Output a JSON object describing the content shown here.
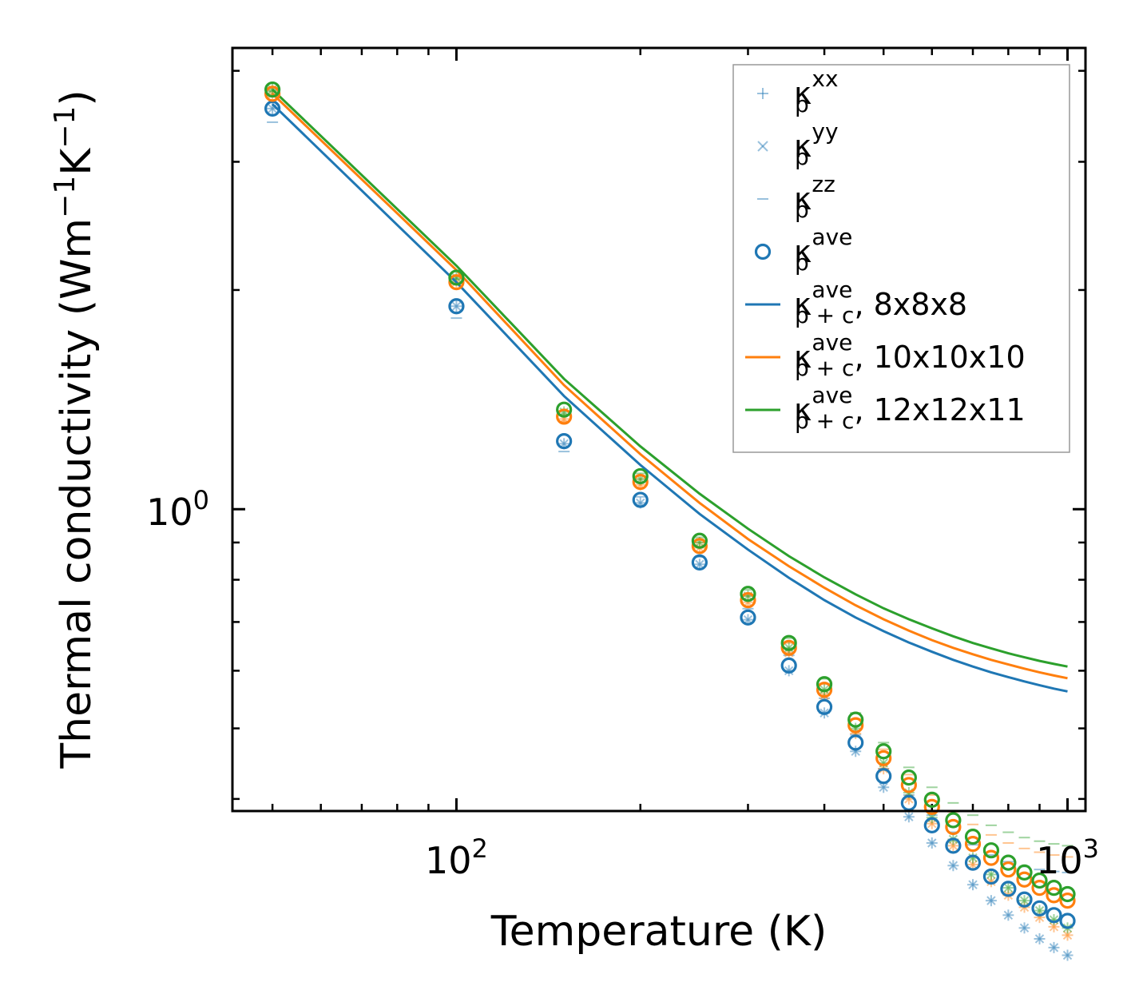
{
  "chart_data": {
    "type": "line",
    "title": "",
    "xlabel": "Temperature (K)",
    "ylabel": "Thermal conductivity (Wm",
    "ylabel_unit_parts": [
      "Wm",
      "−1",
      "K",
      "−1"
    ],
    "xscale": "log",
    "yscale": "log",
    "xlim": [
      43,
      1070
    ],
    "ylim": [
      0.385,
      4.3
    ],
    "x_tick_labels": [
      {
        "base": "10",
        "exp": "2",
        "value": 100
      },
      {
        "base": "10",
        "exp": "3",
        "value": 1000
      }
    ],
    "y_tick_labels": [
      {
        "base": "10",
        "exp": "0",
        "value": 1
      }
    ],
    "grid": false,
    "legend_position": "top-right",
    "x": [
      50,
      100,
      150,
      200,
      250,
      300,
      350,
      400,
      450,
      500,
      550,
      600,
      650,
      700,
      750,
      800,
      850,
      900,
      950,
      1000
    ],
    "series": [
      {
        "name": "8x8x8",
        "color": "#1f77b4",
        "line": [
          3.6,
          2.05,
          1.43,
          1.15,
          0.985,
          0.88,
          0.805,
          0.75,
          0.71,
          0.68,
          0.656,
          0.637,
          0.621,
          0.608,
          0.597,
          0.588,
          0.58,
          0.573,
          0.567,
          0.562
        ],
        "kp_ave": [
          3.55,
          1.9,
          1.24,
          1.03,
          0.845,
          0.71,
          0.61,
          0.535,
          0.478,
          0.43,
          0.395,
          0.368,
          0.345,
          0.327,
          0.313,
          0.301,
          0.291,
          0.283,
          0.277,
          0.272
        ],
        "kp_xx": [
          3.55,
          1.9,
          1.23,
          1.02,
          0.84,
          0.705,
          0.6,
          0.525,
          0.465,
          0.415,
          0.378,
          0.348,
          0.324,
          0.305,
          0.29,
          0.277,
          0.266,
          0.257,
          0.25,
          0.244
        ],
        "kp_yy": [
          3.55,
          1.9,
          1.23,
          1.02,
          0.84,
          0.705,
          0.6,
          0.525,
          0.465,
          0.415,
          0.378,
          0.348,
          0.324,
          0.305,
          0.29,
          0.277,
          0.266,
          0.257,
          0.25,
          0.244
        ],
        "kp_zz": [
          3.4,
          1.83,
          1.2,
          1.04,
          0.86,
          0.73,
          0.63,
          0.55,
          0.49,
          0.44,
          0.405,
          0.38,
          0.36,
          0.346,
          0.335,
          0.328,
          0.323,
          0.32,
          0.318,
          0.317
        ]
      },
      {
        "name": "10x10x10",
        "color": "#ff7f0e",
        "line": [
          3.72,
          2.13,
          1.48,
          1.19,
          1.02,
          0.91,
          0.835,
          0.78,
          0.738,
          0.706,
          0.681,
          0.661,
          0.645,
          0.632,
          0.621,
          0.612,
          0.604,
          0.597,
          0.591,
          0.586
        ],
        "kp_ave": [
          3.72,
          2.05,
          1.34,
          1.09,
          0.89,
          0.75,
          0.645,
          0.565,
          0.505,
          0.455,
          0.418,
          0.39,
          0.366,
          0.347,
          0.332,
          0.32,
          0.31,
          0.302,
          0.295,
          0.29
        ],
        "kp_xx": [
          3.72,
          2.05,
          1.33,
          1.08,
          0.885,
          0.745,
          0.635,
          0.555,
          0.492,
          0.44,
          0.4,
          0.37,
          0.345,
          0.325,
          0.308,
          0.295,
          0.284,
          0.275,
          0.267,
          0.26
        ],
        "kp_yy": [
          3.72,
          2.05,
          1.33,
          1.08,
          0.885,
          0.745,
          0.635,
          0.555,
          0.492,
          0.44,
          0.4,
          0.37,
          0.345,
          0.325,
          0.308,
          0.295,
          0.284,
          0.275,
          0.267,
          0.26
        ],
        "kp_zz": [
          3.7,
          2.04,
          1.32,
          1.1,
          0.9,
          0.76,
          0.655,
          0.575,
          0.515,
          0.468,
          0.432,
          0.405,
          0.384,
          0.369,
          0.357,
          0.348,
          0.342,
          0.338,
          0.335,
          0.333
        ]
      },
      {
        "name": "12x12x11",
        "color": "#2ca02c",
        "line": [
          3.77,
          2.16,
          1.51,
          1.22,
          1.05,
          0.94,
          0.862,
          0.806,
          0.764,
          0.731,
          0.706,
          0.686,
          0.669,
          0.655,
          0.644,
          0.634,
          0.626,
          0.619,
          0.613,
          0.608
        ],
        "kp_ave": [
          3.77,
          2.08,
          1.37,
          1.11,
          0.905,
          0.765,
          0.655,
          0.575,
          0.514,
          0.465,
          0.428,
          0.399,
          0.374,
          0.355,
          0.34,
          0.327,
          0.317,
          0.309,
          0.302,
          0.296
        ],
        "kp_xx": [
          3.77,
          2.08,
          1.36,
          1.1,
          0.9,
          0.76,
          0.645,
          0.565,
          0.5,
          0.448,
          0.408,
          0.377,
          0.352,
          0.332,
          0.315,
          0.302,
          0.29,
          0.281,
          0.273,
          0.266
        ],
        "kp_yy": [
          3.77,
          2.08,
          1.36,
          1.1,
          0.9,
          0.76,
          0.645,
          0.565,
          0.5,
          0.448,
          0.408,
          0.377,
          0.352,
          0.332,
          0.315,
          0.302,
          0.29,
          0.281,
          0.273,
          0.266
        ],
        "kp_zz": [
          3.75,
          2.07,
          1.35,
          1.12,
          0.915,
          0.775,
          0.665,
          0.585,
          0.525,
          0.478,
          0.442,
          0.415,
          0.395,
          0.38,
          0.368,
          0.36,
          0.354,
          0.35,
          0.347,
          0.345
        ]
      }
    ],
    "legend": [
      {
        "kind": "plus",
        "symbol": "κ",
        "sub": "p",
        "sup": "xx",
        "suffix": "",
        "color": "#1f77b4"
      },
      {
        "kind": "cross",
        "symbol": "κ",
        "sub": "p",
        "sup": "yy",
        "suffix": "",
        "color": "#1f77b4"
      },
      {
        "kind": "dash",
        "symbol": "κ",
        "sub": "p",
        "sup": "zz",
        "suffix": "",
        "color": "#1f77b4"
      },
      {
        "kind": "circle",
        "symbol": "κ",
        "sub": "p",
        "sup": "ave",
        "suffix": "",
        "color": "#1f77b4"
      },
      {
        "kind": "line",
        "symbol": "κ",
        "sub": "p + c",
        "sup": "ave",
        "suffix": ", 8x8x8",
        "color": "#1f77b4"
      },
      {
        "kind": "line",
        "symbol": "κ",
        "sub": "p + c",
        "sup": "ave",
        "suffix": ", 10x10x10",
        "color": "#ff7f0e"
      },
      {
        "kind": "line",
        "symbol": "κ",
        "sub": "p + c",
        "sup": "ave",
        "suffix": ", 12x12x11",
        "color": "#2ca02c"
      }
    ]
  }
}
